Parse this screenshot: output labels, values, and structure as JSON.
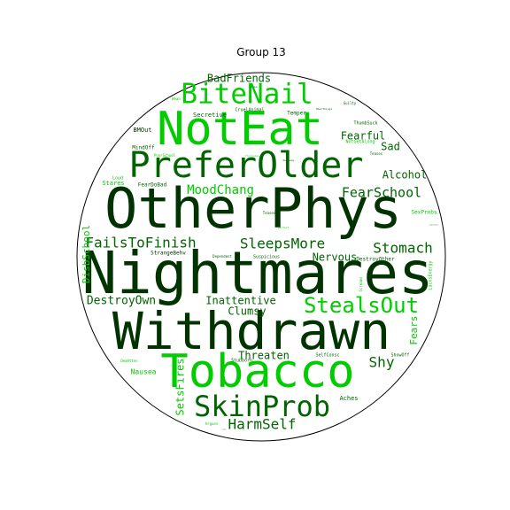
{
  "chart_data": {
    "type": "wordcloud",
    "title": "Group 13",
    "mask": "circle",
    "border_color": "#000000",
    "colors": {
      "dark": "#003300",
      "mid": "#006400",
      "bright": "#00cc00",
      "light": "#33dd33"
    },
    "words": [
      {
        "text": "Nightmares",
        "weight": 1.0,
        "color": "dark"
      },
      {
        "text": "OtherPhys",
        "weight": 1.0,
        "color": "dark"
      },
      {
        "text": "Withdrawn",
        "weight": 0.96,
        "color": "dark"
      },
      {
        "text": "Tobacco",
        "weight": 0.94,
        "color": "bright"
      },
      {
        "text": "NotEat",
        "weight": 0.9,
        "color": "bright"
      },
      {
        "text": "PreferOlder",
        "weight": 0.78,
        "color": "mid"
      },
      {
        "text": "SkinProb",
        "weight": 0.63,
        "color": "mid"
      },
      {
        "text": "BiteNail",
        "weight": 0.6,
        "color": "bright"
      },
      {
        "text": "StealsOut",
        "weight": 0.48,
        "color": "bright"
      },
      {
        "text": "FailsToFinish",
        "weight": 0.35,
        "color": "mid"
      },
      {
        "text": "SleepsMore",
        "weight": 0.35,
        "color": "mid"
      },
      {
        "text": "Stomach",
        "weight": 0.35,
        "color": "mid"
      },
      {
        "text": "HarmSelf",
        "weight": 0.35,
        "color": "mid"
      },
      {
        "text": "Shy",
        "weight": 0.33,
        "color": "mid"
      },
      {
        "text": "FearSchool",
        "weight": 0.3,
        "color": "mid"
      },
      {
        "text": "MoodChang",
        "weight": 0.3,
        "color": "bright"
      },
      {
        "text": "DestroyOwn",
        "weight": 0.27,
        "color": "mid"
      },
      {
        "text": "Threaten",
        "weight": 0.25,
        "color": "mid"
      },
      {
        "text": "Alcohol",
        "weight": 0.25,
        "color": "mid"
      },
      {
        "text": "BadFriends",
        "weight": 0.25,
        "color": "mid"
      },
      {
        "text": "Inattentive",
        "weight": 0.23,
        "color": "mid"
      },
      {
        "text": "Clumsy",
        "weight": 0.23,
        "color": "mid"
      },
      {
        "text": "Nervous",
        "weight": 0.23,
        "color": "mid"
      },
      {
        "text": "Fearful",
        "weight": 0.23,
        "color": "mid"
      },
      {
        "text": "Sad",
        "weight": 0.23,
        "color": "mid"
      },
      {
        "text": "SetsFires",
        "weight": 0.2,
        "color": "bright"
      },
      {
        "text": "DisbSchool",
        "weight": 0.2,
        "color": "bright"
      },
      {
        "text": "Fears",
        "weight": 0.2,
        "color": "bright"
      },
      {
        "text": "Nausea",
        "weight": 0.12,
        "color": "bright"
      },
      {
        "text": "Aches",
        "weight": 0.12,
        "color": "mid"
      },
      {
        "text": "Secretive",
        "weight": 0.12,
        "color": "mid"
      },
      {
        "text": "Temper",
        "weight": 0.1,
        "color": "mid"
      },
      {
        "text": "Stares",
        "weight": 0.12,
        "color": "bright"
      },
      {
        "text": "Loud",
        "weight": 0.1,
        "color": "bright"
      },
      {
        "text": "BMOut",
        "weight": 0.12,
        "color": "dark"
      },
      {
        "text": "MindOff",
        "weight": 0.12,
        "color": "mid"
      },
      {
        "text": "FearDoBad",
        "weight": 0.1,
        "color": "mid"
      },
      {
        "text": "StrangeBehv",
        "weight": 0.1,
        "color": "dark"
      },
      {
        "text": "Suspicious",
        "weight": 0.08,
        "color": "mid"
      },
      {
        "text": "DestroyOther",
        "weight": 0.1,
        "color": "mid"
      },
      {
        "text": "SelfConsc",
        "weight": 0.1,
        "color": "mid"
      },
      {
        "text": "Stubborn",
        "weight": 0.08,
        "color": "mid"
      },
      {
        "text": "ShowOff",
        "weight": 0.08,
        "color": "mid"
      },
      {
        "text": "ThumbSuck",
        "weight": 0.08,
        "color": "mid"
      },
      {
        "text": "NotGetAlong",
        "weight": 0.08,
        "color": "bright"
      },
      {
        "text": "CruelAnimal",
        "weight": 0.08,
        "color": "mid"
      },
      {
        "text": "Guilty",
        "weight": 0.06,
        "color": "mid"
      },
      {
        "text": "Teases",
        "weight": 0.06,
        "color": "mid"
      },
      {
        "text": "SexProbs",
        "weight": 0.08,
        "color": "bright"
      },
      {
        "text": "LacksEnergy",
        "weight": 0.08,
        "color": "bright"
      },
      {
        "text": "Screams",
        "weight": 0.06,
        "color": "bright"
      },
      {
        "text": "Dependent",
        "weight": 0.06,
        "color": "mid"
      },
      {
        "text": "Teased",
        "weight": 0.05,
        "color": "mid"
      },
      {
        "text": "Perfect",
        "weight": 0.05,
        "color": "bright"
      },
      {
        "text": "PoorSchool",
        "weight": 0.06,
        "color": "bright"
      },
      {
        "text": "DemAtten",
        "weight": 0.05,
        "color": "bright"
      },
      {
        "text": "Argues",
        "weight": 0.06,
        "color": "bright"
      },
      {
        "text": "Wean",
        "weight": 0.05,
        "color": "bright"
      },
      {
        "text": "Sulks",
        "weight": 0.04,
        "color": "mid"
      },
      {
        "text": "HearThings",
        "weight": 0.05,
        "color": "mid"
      },
      {
        "text": "ThinksSex",
        "weight": 0.04,
        "color": "light"
      },
      {
        "text": "RunAway",
        "weight": 0.04,
        "color": "mid"
      },
      {
        "text": "Lonliness",
        "weight": 0.03,
        "color": "mid"
      },
      {
        "text": "SeeThings",
        "weight": 0.03,
        "color": "mid"
      },
      {
        "text": "Lies",
        "weight": 0.03,
        "color": "mid"
      }
    ]
  }
}
